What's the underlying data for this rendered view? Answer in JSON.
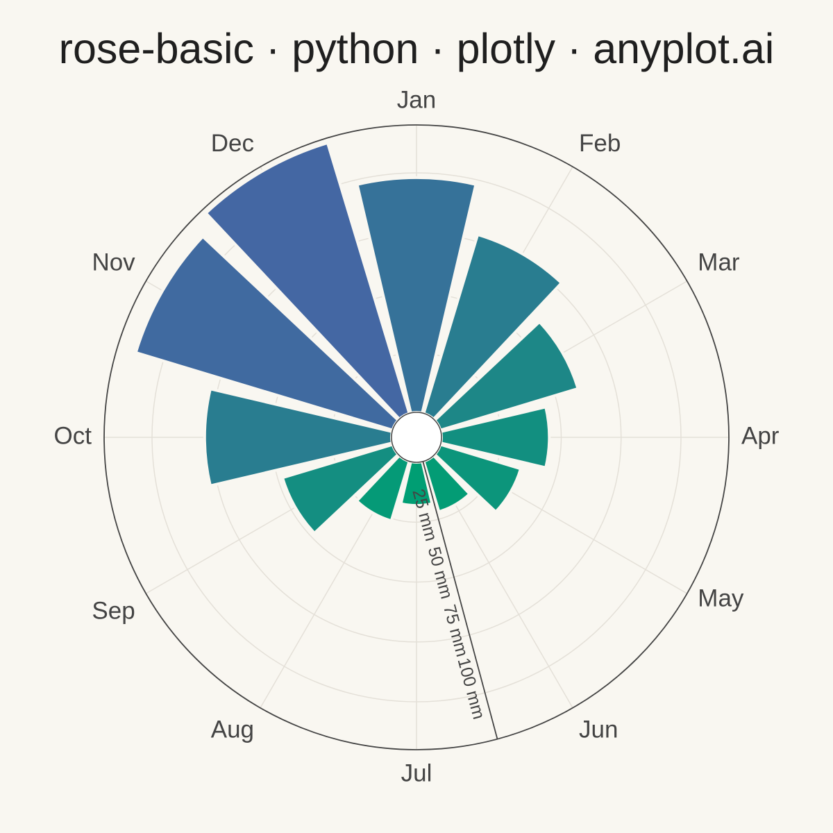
{
  "chart_data": {
    "type": "rose",
    "title": "rose-basic · python · plotly · anyplot.ai",
    "categories": [
      "Jan",
      "Feb",
      "Mar",
      "Apr",
      "May",
      "Jun",
      "Jul",
      "Aug",
      "Sep",
      "Oct",
      "Nov",
      "Dec"
    ],
    "values": [
      98,
      78,
      60,
      45,
      35,
      22,
      18,
      26,
      48,
      78,
      112,
      118
    ],
    "radial_axis": {
      "range": [
        0,
        120
      ],
      "tick_values": [
        25,
        50,
        75,
        100
      ],
      "tick_labels": [
        "25 mm",
        "50 mm",
        "75 mm",
        "100 mm"
      ]
    },
    "angular_axis": {
      "direction": "clockwise",
      "rotation": "Jan at top"
    },
    "grid": true,
    "legend": false,
    "colors": {
      "background": "#F9F7F1",
      "grid": "#E4E0D8",
      "axis_line": "#444444",
      "colorscale": [
        "#009E73",
        "#4467A3"
      ]
    }
  }
}
